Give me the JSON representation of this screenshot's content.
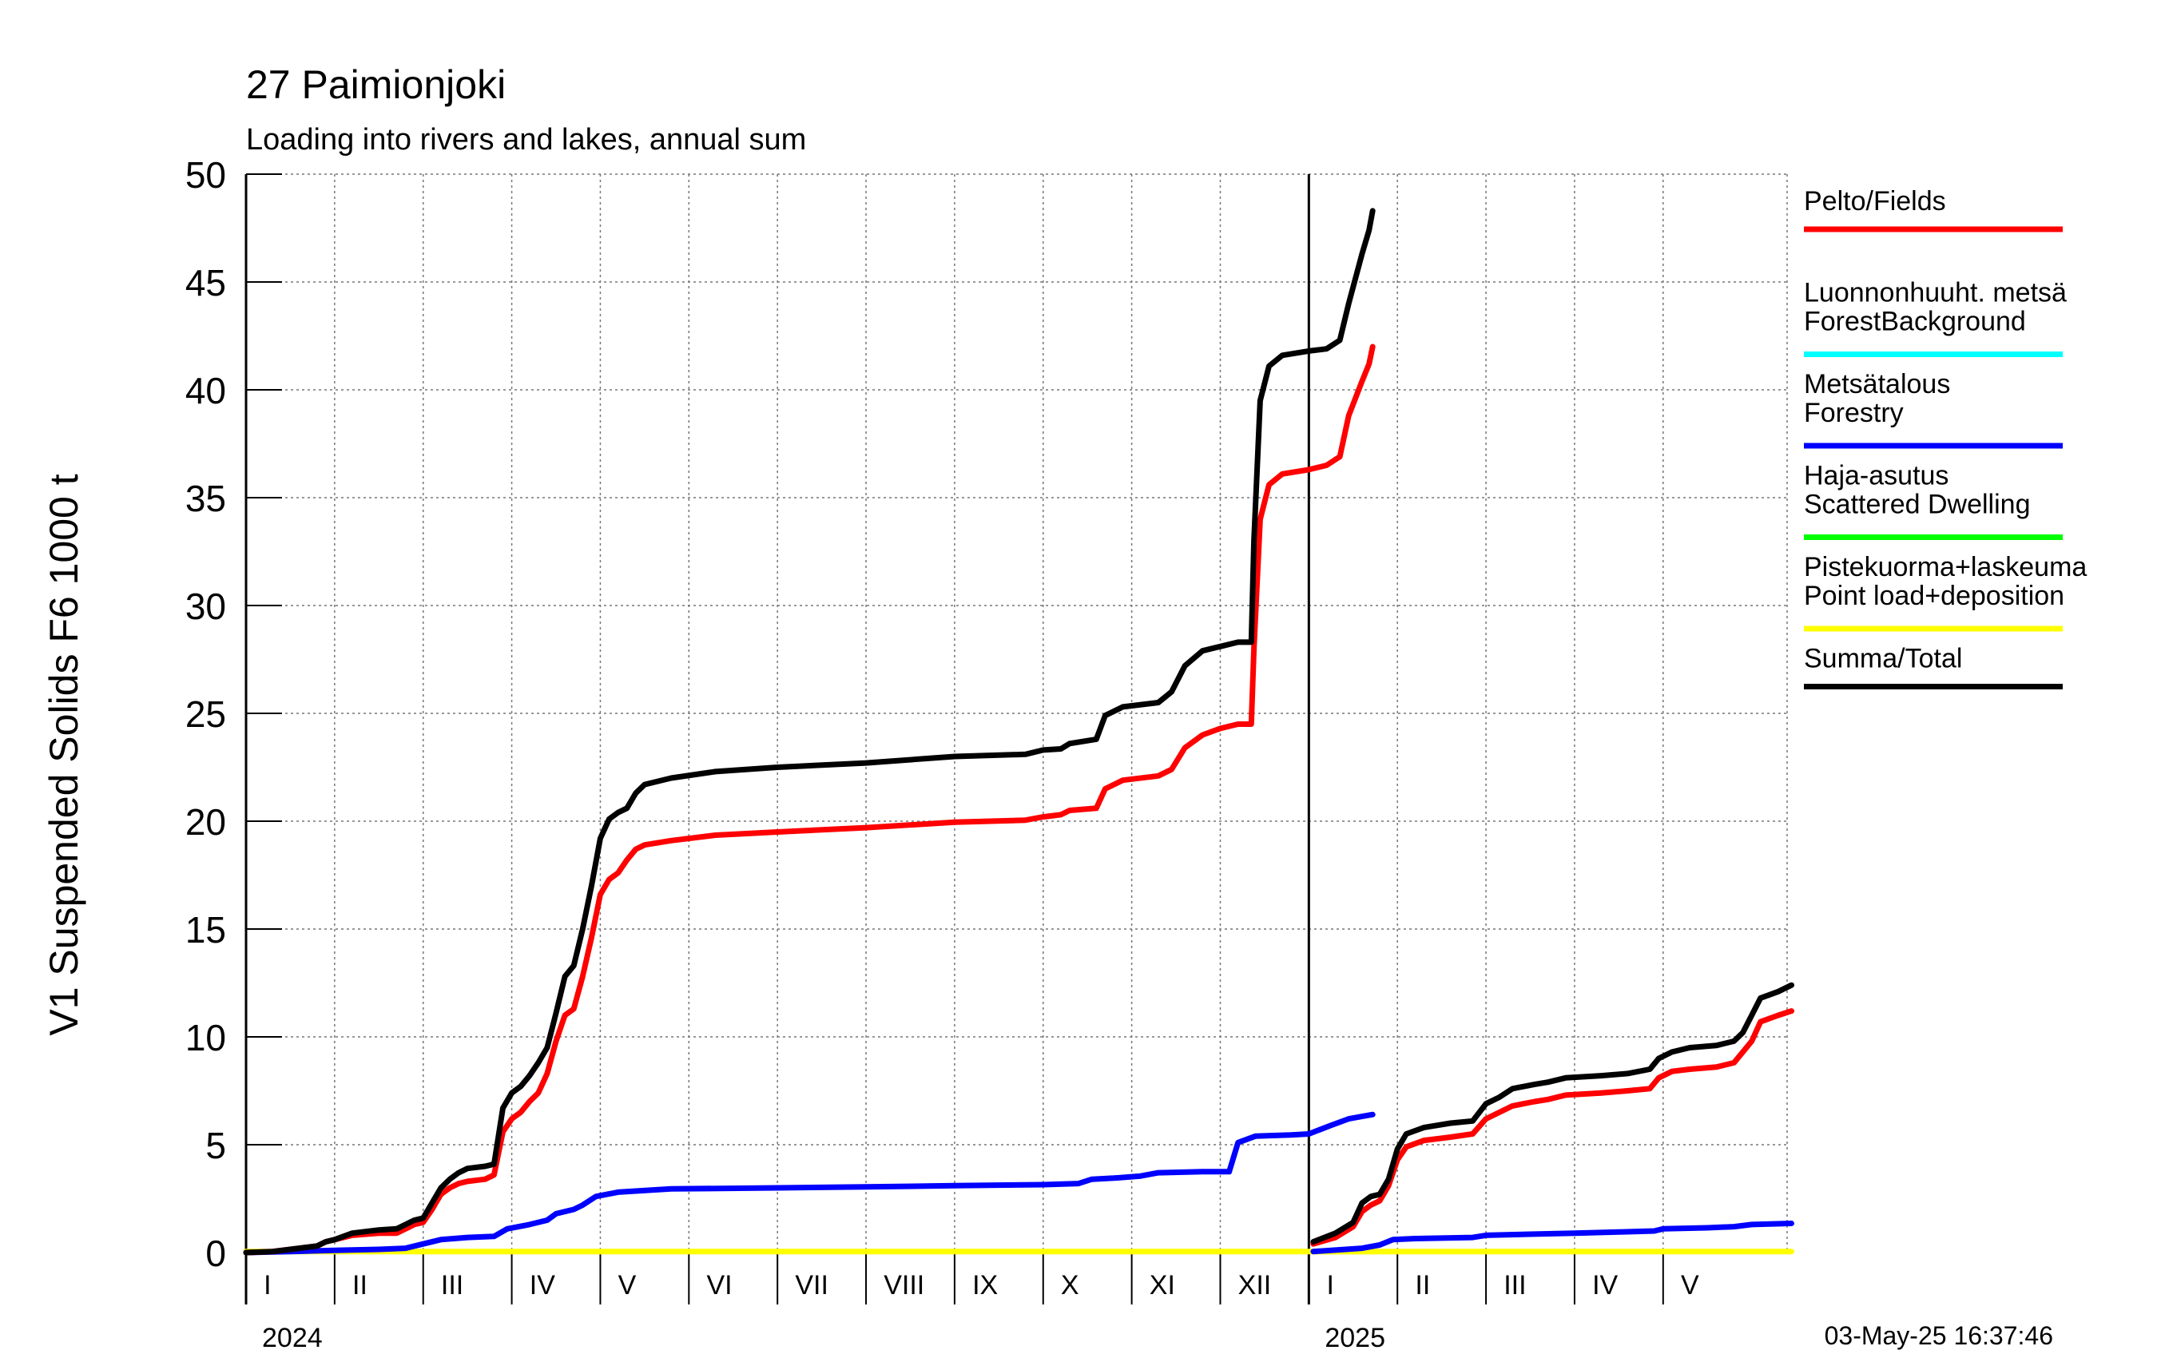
{
  "chart_data": {
    "type": "line",
    "title": "27 Paimionjoki",
    "subtitle": "Loading into rivers and lakes, annual sum",
    "ylabel": "V1 Suspended Solids F6 1000 t",
    "ylim": [
      0,
      50
    ],
    "yticks": [
      0,
      5,
      10,
      15,
      20,
      25,
      30,
      35,
      40,
      45,
      50
    ],
    "grid": true,
    "legend_placement": "right",
    "timestamp": "03-May-25 16:37:46",
    "periods": [
      {
        "year_label": "2024",
        "x_range": [
          0,
          12
        ],
        "months": [
          "I",
          "II",
          "III",
          "IV",
          "V",
          "VI",
          "VII",
          "VIII",
          "IX",
          "X",
          "XI",
          "XII"
        ]
      },
      {
        "year_label": "2025",
        "x_range": [
          12,
          17
        ],
        "months": [
          "I",
          "II",
          "III",
          "IV",
          "V"
        ]
      }
    ],
    "x_unit": "months since start of 2024",
    "series": [
      {
        "name": "Pelto/Fields",
        "color": "#ff0000",
        "segments": [
          [
            [
              0,
              0
            ],
            [
              0.3,
              0.05
            ],
            [
              0.5,
              0.15
            ],
            [
              0.8,
              0.3
            ],
            [
              0.9,
              0.5
            ],
            [
              1.0,
              0.6
            ],
            [
              1.2,
              0.8
            ],
            [
              1.5,
              0.9
            ],
            [
              1.7,
              0.9
            ],
            [
              1.8,
              1.1
            ],
            [
              1.9,
              1.3
            ],
            [
              2.0,
              1.4
            ],
            [
              2.1,
              2.0
            ],
            [
              2.2,
              2.7
            ],
            [
              2.3,
              3.0
            ],
            [
              2.4,
              3.2
            ],
            [
              2.5,
              3.3
            ],
            [
              2.7,
              3.4
            ],
            [
              2.8,
              3.6
            ],
            [
              2.9,
              5.6
            ],
            [
              3.0,
              6.2
            ],
            [
              3.1,
              6.5
            ],
            [
              3.2,
              7.0
            ],
            [
              3.3,
              7.4
            ],
            [
              3.4,
              8.3
            ],
            [
              3.5,
              9.8
            ],
            [
              3.6,
              11.0
            ],
            [
              3.7,
              11.3
            ],
            [
              3.8,
              12.8
            ],
            [
              3.9,
              14.6
            ],
            [
              4.0,
              16.6
            ],
            [
              4.1,
              17.3
            ],
            [
              4.2,
              17.6
            ],
            [
              4.3,
              18.2
            ],
            [
              4.4,
              18.7
            ],
            [
              4.5,
              18.9
            ],
            [
              4.8,
              19.1
            ],
            [
              5.3,
              19.35
            ],
            [
              6.0,
              19.5
            ],
            [
              7.0,
              19.7
            ],
            [
              8.0,
              19.95
            ],
            [
              8.8,
              20.05
            ],
            [
              9.0,
              20.2
            ],
            [
              9.2,
              20.3
            ],
            [
              9.3,
              20.5
            ],
            [
              9.6,
              20.6
            ],
            [
              9.7,
              21.5
            ],
            [
              9.9,
              21.9
            ],
            [
              10.3,
              22.1
            ],
            [
              10.45,
              22.4
            ],
            [
              10.6,
              23.4
            ],
            [
              10.8,
              24.0
            ],
            [
              11.0,
              24.3
            ],
            [
              11.2,
              24.5
            ],
            [
              11.35,
              24.5
            ],
            [
              11.38,
              28.0
            ],
            [
              11.45,
              34.0
            ],
            [
              11.55,
              35.6
            ],
            [
              11.7,
              36.1
            ],
            [
              12.0,
              36.3
            ],
            [
              12.2,
              36.5
            ],
            [
              12.35,
              36.9
            ],
            [
              12.45,
              38.8
            ],
            [
              12.6,
              40.4
            ],
            [
              12.68,
              41.2
            ],
            [
              12.72,
              42.0
            ]
          ],
          [
            [
              12.05,
              0.4
            ],
            [
              12.3,
              0.7
            ],
            [
              12.5,
              1.2
            ],
            [
              12.6,
              1.9
            ],
            [
              12.7,
              2.2
            ],
            [
              12.8,
              2.4
            ],
            [
              12.9,
              3.1
            ],
            [
              13.0,
              4.3
            ],
            [
              13.1,
              4.9
            ],
            [
              13.3,
              5.2
            ],
            [
              13.6,
              5.35
            ],
            [
              13.85,
              5.5
            ],
            [
              14.0,
              6.2
            ],
            [
              14.15,
              6.5
            ],
            [
              14.3,
              6.8
            ],
            [
              14.55,
              7.0
            ],
            [
              14.7,
              7.1
            ],
            [
              14.9,
              7.3
            ],
            [
              15.3,
              7.4
            ],
            [
              15.6,
              7.5
            ],
            [
              15.85,
              7.6
            ],
            [
              15.95,
              8.1
            ],
            [
              16.1,
              8.4
            ],
            [
              16.3,
              8.5
            ],
            [
              16.6,
              8.6
            ],
            [
              16.8,
              8.8
            ],
            [
              16.9,
              9.3
            ],
            [
              17.0,
              9.8
            ],
            [
              17.1,
              10.7
            ],
            [
              17.3,
              11.0
            ],
            [
              17.45,
              11.2
            ]
          ]
        ]
      },
      {
        "name": "Luonnonhuuht. metsä ForestBackground",
        "color": "#00ffff",
        "segments": []
      },
      {
        "name": "Metsätalous Forestry",
        "color": "#0000ff",
        "segments": [
          [
            [
              0,
              0
            ],
            [
              0.5,
              0.05
            ],
            [
              1.0,
              0.1
            ],
            [
              1.5,
              0.15
            ],
            [
              1.8,
              0.2
            ],
            [
              2.0,
              0.4
            ],
            [
              2.2,
              0.6
            ],
            [
              2.5,
              0.7
            ],
            [
              2.8,
              0.75
            ],
            [
              2.95,
              1.1
            ],
            [
              3.2,
              1.3
            ],
            [
              3.4,
              1.5
            ],
            [
              3.5,
              1.8
            ],
            [
              3.7,
              2.0
            ],
            [
              3.8,
              2.2
            ],
            [
              3.95,
              2.6
            ],
            [
              4.2,
              2.8
            ],
            [
              4.8,
              2.95
            ],
            [
              6.0,
              3.0
            ],
            [
              7.0,
              3.05
            ],
            [
              8.0,
              3.1
            ],
            [
              9.0,
              3.15
            ],
            [
              9.4,
              3.2
            ],
            [
              9.55,
              3.4
            ],
            [
              9.8,
              3.45
            ],
            [
              10.1,
              3.55
            ],
            [
              10.3,
              3.7
            ],
            [
              10.8,
              3.75
            ],
            [
              11.1,
              3.75
            ],
            [
              11.2,
              5.1
            ],
            [
              11.4,
              5.4
            ],
            [
              11.8,
              5.45
            ],
            [
              12.0,
              5.5
            ],
            [
              12.25,
              5.9
            ],
            [
              12.45,
              6.2
            ],
            [
              12.72,
              6.4
            ]
          ],
          [
            [
              12.05,
              0.05
            ],
            [
              12.6,
              0.2
            ],
            [
              12.8,
              0.35
            ],
            [
              12.95,
              0.6
            ],
            [
              13.2,
              0.65
            ],
            [
              13.85,
              0.7
            ],
            [
              14.0,
              0.8
            ],
            [
              14.5,
              0.85
            ],
            [
              15.0,
              0.9
            ],
            [
              15.5,
              0.95
            ],
            [
              15.9,
              1.0
            ],
            [
              16.0,
              1.1
            ],
            [
              16.5,
              1.15
            ],
            [
              16.8,
              1.2
            ],
            [
              17.0,
              1.3
            ],
            [
              17.45,
              1.35
            ]
          ]
        ]
      },
      {
        "name": "Haja-asutus Scattered Dwelling",
        "color": "#00ff00",
        "segments": []
      },
      {
        "name": "Pistekuorma+laskeuma Point load+deposition",
        "color": "#ffff00",
        "segments": [
          [
            [
              0,
              0.05
            ],
            [
              12.72,
              0.05
            ]
          ],
          [
            [
              12.05,
              0.05
            ],
            [
              17.45,
              0.05
            ]
          ]
        ]
      },
      {
        "name": "Summa/Total",
        "color": "#000000",
        "segments": [
          [
            [
              0,
              0
            ],
            [
              0.3,
              0.05
            ],
            [
              0.5,
              0.15
            ],
            [
              0.8,
              0.3
            ],
            [
              0.9,
              0.5
            ],
            [
              1.0,
              0.6
            ],
            [
              1.2,
              0.9
            ],
            [
              1.5,
              1.05
            ],
            [
              1.7,
              1.1
            ],
            [
              1.8,
              1.3
            ],
            [
              1.9,
              1.5
            ],
            [
              2.0,
              1.6
            ],
            [
              2.1,
              2.3
            ],
            [
              2.2,
              3.0
            ],
            [
              2.3,
              3.4
            ],
            [
              2.4,
              3.7
            ],
            [
              2.5,
              3.9
            ],
            [
              2.7,
              4.0
            ],
            [
              2.8,
              4.1
            ],
            [
              2.9,
              6.7
            ],
            [
              3.0,
              7.4
            ],
            [
              3.1,
              7.7
            ],
            [
              3.2,
              8.2
            ],
            [
              3.3,
              8.8
            ],
            [
              3.4,
              9.5
            ],
            [
              3.5,
              11.1
            ],
            [
              3.6,
              12.8
            ],
            [
              3.7,
              13.3
            ],
            [
              3.8,
              15.0
            ],
            [
              3.9,
              17.0
            ],
            [
              4.0,
              19.2
            ],
            [
              4.1,
              20.1
            ],
            [
              4.2,
              20.4
            ],
            [
              4.3,
              20.6
            ],
            [
              4.4,
              21.3
            ],
            [
              4.5,
              21.7
            ],
            [
              4.8,
              22.0
            ],
            [
              5.3,
              22.3
            ],
            [
              6.0,
              22.5
            ],
            [
              7.0,
              22.7
            ],
            [
              8.0,
              23.0
            ],
            [
              8.8,
              23.1
            ],
            [
              9.0,
              23.3
            ],
            [
              9.2,
              23.35
            ],
            [
              9.3,
              23.6
            ],
            [
              9.6,
              23.8
            ],
            [
              9.7,
              24.9
            ],
            [
              9.9,
              25.3
            ],
            [
              10.3,
              25.5
            ],
            [
              10.45,
              26.0
            ],
            [
              10.6,
              27.2
            ],
            [
              10.8,
              27.9
            ],
            [
              11.0,
              28.1
            ],
            [
              11.2,
              28.3
            ],
            [
              11.35,
              28.3
            ],
            [
              11.38,
              33.0
            ],
            [
              11.45,
              39.5
            ],
            [
              11.55,
              41.1
            ],
            [
              11.7,
              41.6
            ],
            [
              12.0,
              41.8
            ],
            [
              12.2,
              41.9
            ],
            [
              12.35,
              42.3
            ],
            [
              12.45,
              44.0
            ],
            [
              12.6,
              46.3
            ],
            [
              12.68,
              47.4
            ],
            [
              12.72,
              48.3
            ]
          ],
          [
            [
              12.05,
              0.5
            ],
            [
              12.3,
              0.9
            ],
            [
              12.5,
              1.4
            ],
            [
              12.6,
              2.3
            ],
            [
              12.7,
              2.6
            ],
            [
              12.8,
              2.7
            ],
            [
              12.9,
              3.4
            ],
            [
              13.0,
              4.8
            ],
            [
              13.1,
              5.5
            ],
            [
              13.3,
              5.8
            ],
            [
              13.6,
              6.0
            ],
            [
              13.85,
              6.1
            ],
            [
              14.0,
              6.9
            ],
            [
              14.15,
              7.2
            ],
            [
              14.3,
              7.6
            ],
            [
              14.55,
              7.8
            ],
            [
              14.7,
              7.9
            ],
            [
              14.9,
              8.1
            ],
            [
              15.3,
              8.2
            ],
            [
              15.6,
              8.3
            ],
            [
              15.85,
              8.5
            ],
            [
              15.95,
              9.0
            ],
            [
              16.1,
              9.3
            ],
            [
              16.3,
              9.5
            ],
            [
              16.6,
              9.6
            ],
            [
              16.8,
              9.8
            ],
            [
              16.9,
              10.2
            ],
            [
              17.0,
              11.0
            ],
            [
              17.1,
              11.8
            ],
            [
              17.3,
              12.1
            ],
            [
              17.45,
              12.4
            ]
          ]
        ]
      }
    ]
  },
  "legend": [
    {
      "line1": "Pelto/Fields",
      "line2": "",
      "color": "#ff0000"
    },
    {
      "line1": "Luonnonhuuht. metsä",
      "line2": "ForestBackground",
      "color": "#00ffff"
    },
    {
      "line1": "Metsätalous",
      "line2": "Forestry",
      "color": "#0000ff"
    },
    {
      "line1": "Haja-asutus",
      "line2": "Scattered Dwelling",
      "color": "#00ff00"
    },
    {
      "line1": "Pistekuorma+laskeuma",
      "line2": "Point load+deposition",
      "color": "#ffff00"
    },
    {
      "line1": "Summa/Total",
      "line2": "",
      "color": "#000000"
    }
  ]
}
